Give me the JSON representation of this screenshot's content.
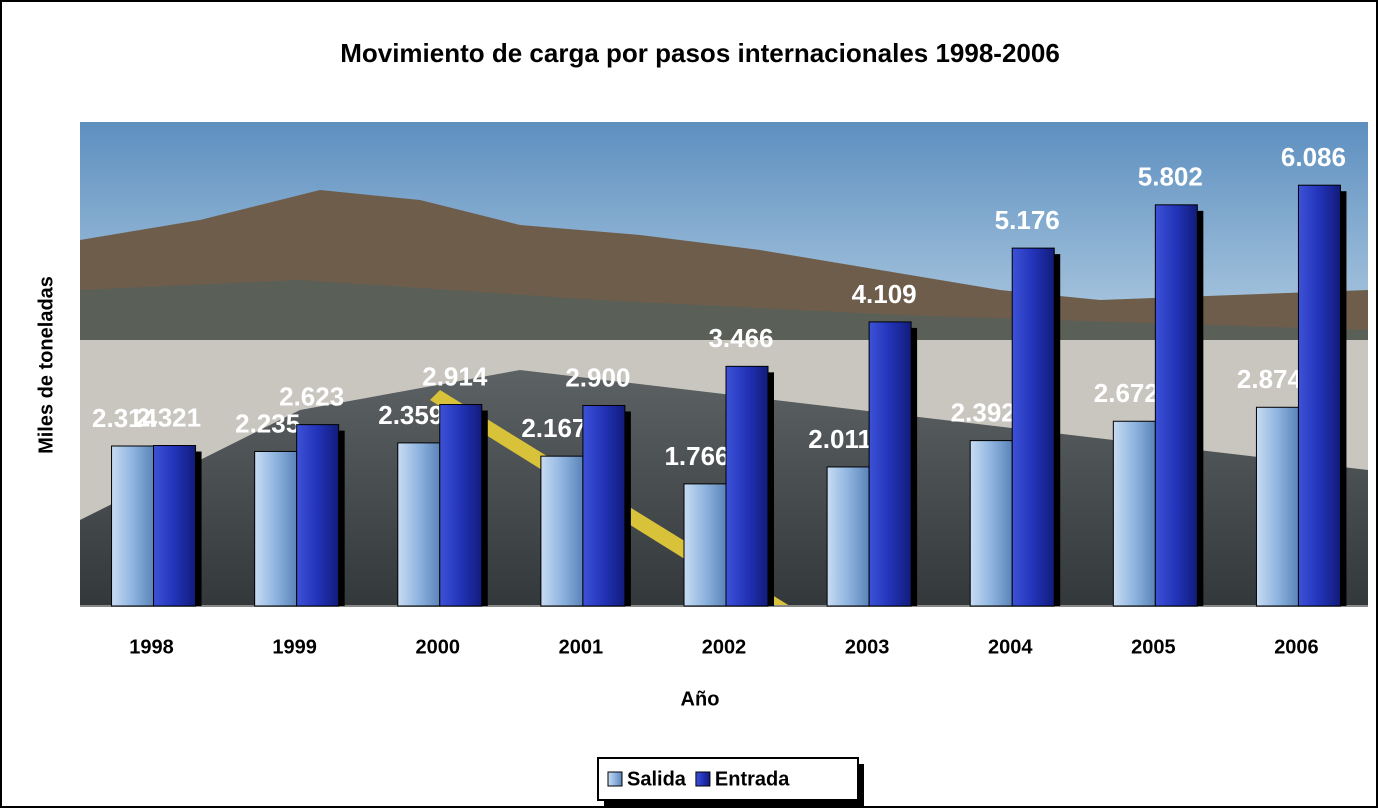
{
  "chart_data": {
    "type": "bar",
    "title": "Movimiento de carga por pasos internacionales 1998-2006",
    "x_label": "Año",
    "y_label": "Miles de toneladas",
    "categories": [
      "1998",
      "1999",
      "2000",
      "2001",
      "2002",
      "2003",
      "2004",
      "2005",
      "2006"
    ],
    "series": [
      {
        "name": "Salida",
        "color": "#8fb4e0",
        "values": [
          2314,
          2235,
          2359,
          2167,
          1766,
          2011,
          2392,
          2672,
          2874
        ],
        "value_labels": [
          "2.314",
          "2.235",
          "2.359",
          "2.167",
          "1.766",
          "2.011",
          "2.392",
          "2.672",
          "2.874"
        ]
      },
      {
        "name": "Entrada",
        "color": "#2233b8",
        "values": [
          2321,
          2623,
          2914,
          2900,
          3466,
          4109,
          5176,
          5802,
          6086
        ],
        "value_labels": [
          "2.321",
          "2.623",
          "2.914",
          "2.900",
          "3.466",
          "4.109",
          "5.176",
          "5.802",
          "6.086"
        ]
      }
    ],
    "ylim": [
      0,
      7000
    ],
    "legend": "bottom"
  }
}
